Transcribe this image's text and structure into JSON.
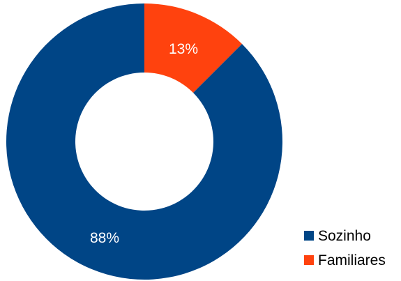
{
  "chart_data": {
    "type": "pie",
    "donut": true,
    "categories": [
      "Sozinho",
      "Familiares"
    ],
    "values": [
      87.5,
      12.5
    ],
    "data_labels": [
      "88%",
      "13%"
    ],
    "colors": [
      "#004586",
      "#ff420e"
    ],
    "legend": {
      "placement": "bottom-right",
      "entries": [
        "Sozinho",
        "Familiares"
      ]
    },
    "title": ""
  }
}
